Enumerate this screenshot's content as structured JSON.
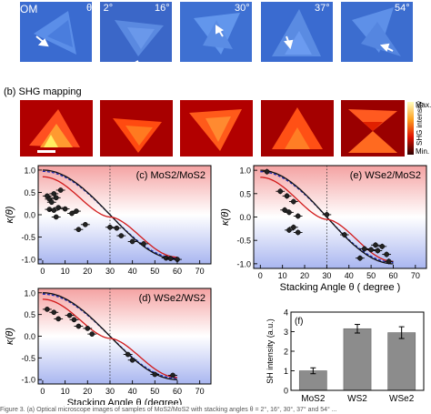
{
  "figure": {
    "panel_a_label": "(a) OM",
    "theta_first": "θ = 2°",
    "angle_labels": [
      "16°",
      "30°",
      "37°",
      "54°"
    ],
    "panel_b_label": "(b) SHG mapping",
    "colorbar": {
      "max": "Max.",
      "min": "Min.",
      "title": "SHG intensity"
    },
    "caption": "Figure 3. (a) Optical microscope images of samples of MoS2/MoS2 with stacking angles θ = 2°, 16°, 30°, 37° and 54° ..."
  },
  "chart_data": [
    {
      "id": "c",
      "type": "scatter",
      "title": "(c) MoS2/MoS2",
      "ylabel": "κ(θ)",
      "xlabel": "",
      "xlim": [
        -2,
        75
      ],
      "ylim": [
        -1.1,
        1.1
      ],
      "xticks": [
        0,
        10,
        20,
        30,
        40,
        50,
        60,
        70
      ],
      "yticks": [
        -1.0,
        -0.5,
        0.0,
        0.5,
        1.0
      ],
      "ytick_labels": [
        "-1.0",
        "-0.5",
        "0.0",
        "0.5",
        "1.0"
      ],
      "vline": 30,
      "points": [
        [
          2,
          0.42
        ],
        [
          3,
          0.35
        ],
        [
          4,
          0.28
        ],
        [
          5,
          0.47
        ],
        [
          6,
          0.38
        ],
        [
          8,
          0.55
        ],
        [
          3,
          0.12
        ],
        [
          5,
          0.1
        ],
        [
          7,
          0.16
        ],
        [
          10,
          0.13
        ],
        [
          6,
          -0.05
        ],
        [
          13,
          0.03
        ],
        [
          15,
          0.08
        ],
        [
          16,
          -0.33
        ],
        [
          19,
          -0.22
        ],
        [
          30,
          -0.28
        ],
        [
          33,
          -0.3
        ],
        [
          35,
          -0.47
        ],
        [
          40,
          -0.6
        ],
        [
          45,
          -0.65
        ],
        [
          55,
          -0.97
        ],
        [
          57,
          -0.98
        ],
        [
          60,
          -1.0
        ]
      ],
      "xerr": 2,
      "yerr": 0.05
    },
    {
      "id": "e",
      "type": "scatter",
      "title": "(e) WSe2/MoS2",
      "ylabel": "κ(θ)",
      "xlabel": "Stacking Angle θ ( degree )",
      "xlim": [
        -3,
        75
      ],
      "ylim": [
        -1.1,
        1.1
      ],
      "xticks": [
        0,
        10,
        20,
        30,
        40,
        50,
        60,
        70
      ],
      "yticks": [
        -1.0,
        -0.5,
        0.0,
        0.5,
        1.0
      ],
      "ytick_labels": [
        "-1.0",
        "-0.5",
        "0.0",
        "0.5",
        "1.0"
      ],
      "vline": 30,
      "points": [
        [
          3,
          0.97
        ],
        [
          9,
          0.55
        ],
        [
          12,
          0.45
        ],
        [
          15,
          0.33
        ],
        [
          11,
          0.15
        ],
        [
          13,
          0.1
        ],
        [
          17,
          0.02
        ],
        [
          13,
          -0.28
        ],
        [
          15,
          -0.22
        ],
        [
          17,
          -0.33
        ],
        [
          30,
          0.05
        ],
        [
          38,
          -0.38
        ],
        [
          45,
          -0.88
        ],
        [
          47,
          -0.68
        ],
        [
          50,
          -0.7
        ],
        [
          52,
          -0.6
        ],
        [
          53,
          -0.72
        ],
        [
          55,
          -0.63
        ],
        [
          57,
          -0.8
        ],
        [
          58,
          -0.95
        ]
      ],
      "xerr": 2,
      "yerr": 0.06
    },
    {
      "id": "d",
      "type": "scatter",
      "title": "(d) WSe2/WS2",
      "ylabel": "κ(θ)",
      "xlabel": "Stacking Angle θ (degree)",
      "xlim": [
        -2,
        75
      ],
      "ylim": [
        -1.1,
        1.1
      ],
      "xticks": [
        0,
        10,
        20,
        30,
        40,
        50,
        60,
        70
      ],
      "yticks": [
        -1.0,
        -0.5,
        0.0,
        0.5,
        1.0
      ],
      "ytick_labels": [
        "-1.0",
        "-0.5",
        "0.0",
        "0.5",
        "1.0"
      ],
      "vline": 30,
      "points": [
        [
          2,
          0.62
        ],
        [
          5,
          0.55
        ],
        [
          7,
          0.4
        ],
        [
          12,
          0.48
        ],
        [
          14,
          0.38
        ],
        [
          16,
          0.23
        ],
        [
          20,
          0.18
        ],
        [
          22,
          0.05
        ],
        [
          38,
          -0.42
        ],
        [
          40,
          -0.55
        ],
        [
          50,
          -0.88
        ],
        [
          58,
          -0.9
        ]
      ],
      "xerr": 2,
      "yerr": 0.05
    },
    {
      "id": "f",
      "type": "bar",
      "title": "(f)",
      "ylabel": "SH intensity (a.u.)",
      "xlabel": "",
      "categories": [
        "MoS2",
        "WS2",
        "WSe2"
      ],
      "values": [
        1.0,
        3.15,
        2.95
      ],
      "errors": [
        0.15,
        0.22,
        0.3
      ],
      "ylim": [
        0,
        4
      ],
      "yticks": [
        0,
        1,
        2,
        3,
        4
      ],
      "ytick_labels": [
        "0",
        "1",
        "2",
        "3",
        "4"
      ]
    }
  ]
}
